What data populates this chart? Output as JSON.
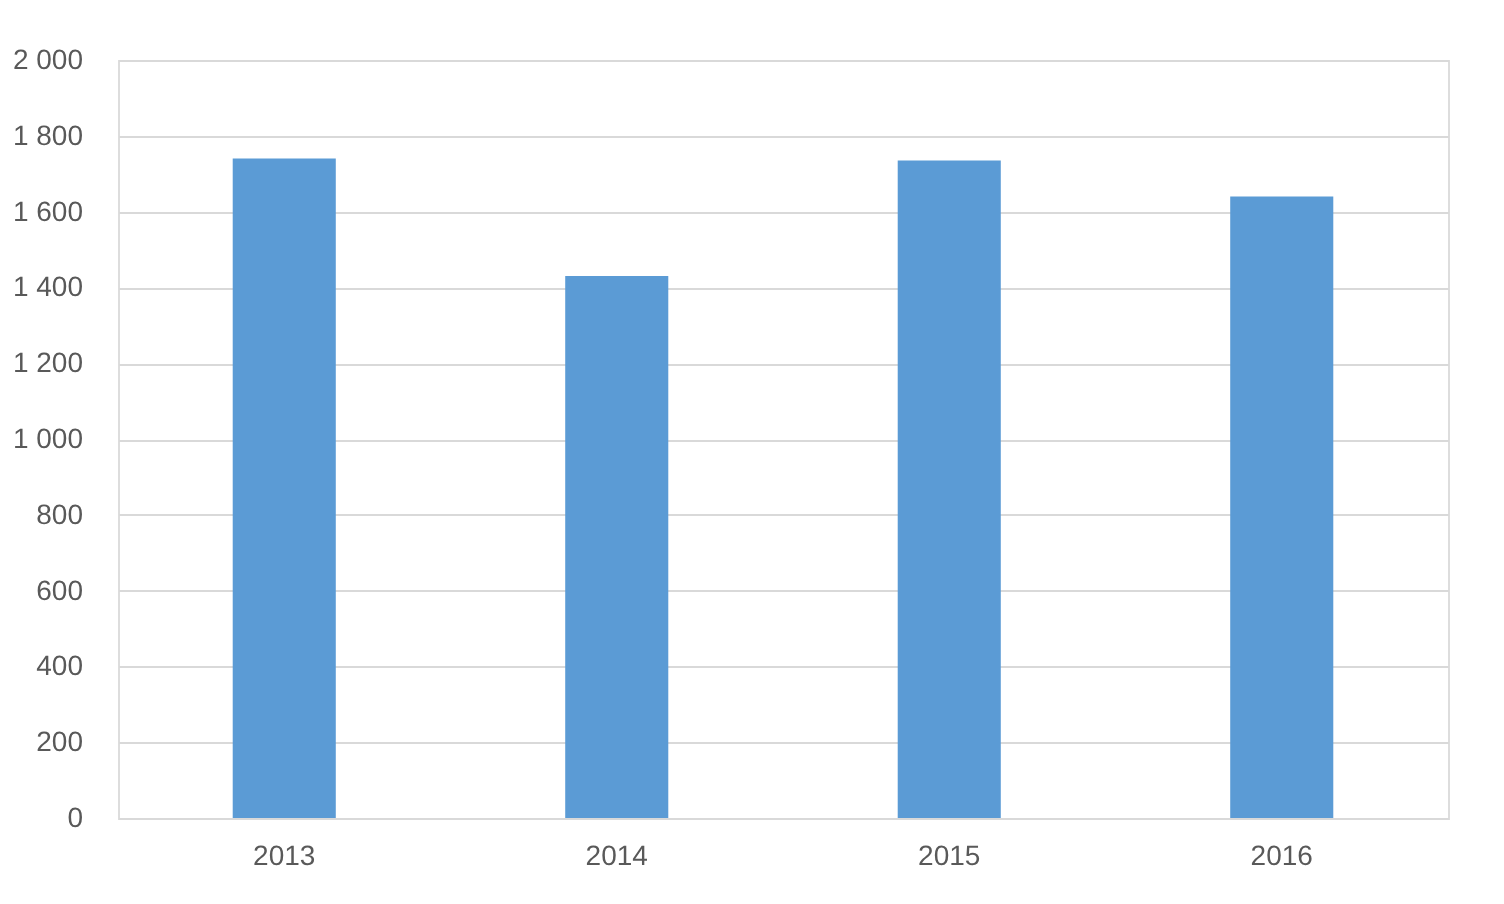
{
  "chart_data": {
    "type": "bar",
    "categories": [
      "2013",
      "2014",
      "2015",
      "2016"
    ],
    "values": [
      1740,
      1430,
      1735,
      1640
    ],
    "color": "#5b9bd5",
    "ylim": [
      0,
      2000
    ],
    "yticks": [
      {
        "value": 0,
        "label": "0"
      },
      {
        "value": 200,
        "label": "200"
      },
      {
        "value": 400,
        "label": "400"
      },
      {
        "value": 600,
        "label": "600"
      },
      {
        "value": 800,
        "label": "800"
      },
      {
        "value": 1000,
        "label": "1 000"
      },
      {
        "value": 1200,
        "label": "1 200"
      },
      {
        "value": 1400,
        "label": "1 400"
      },
      {
        "value": 1600,
        "label": "1 600"
      },
      {
        "value": 1800,
        "label": "1 800"
      },
      {
        "value": 2000,
        "label": "2 000"
      }
    ],
    "grid": "y"
  }
}
